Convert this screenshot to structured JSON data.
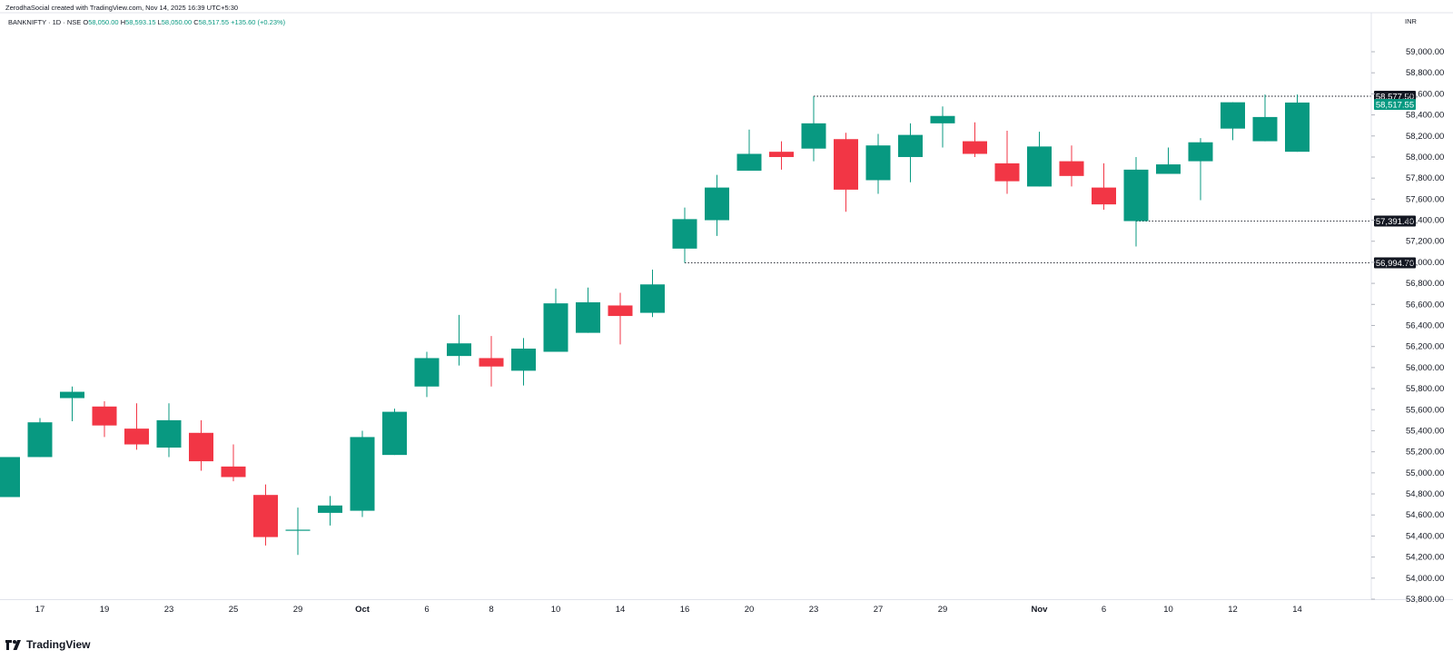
{
  "credit": "ZerodhaSocial created with TradingView.com, Nov 14, 2025 16:39 UTC+5:30",
  "legend": {
    "symbol": "BANKNIFTY · 1D · NSE",
    "open_label": "O",
    "open": "58,050.00",
    "high_label": "H",
    "high": "58,593.15",
    "low_label": "L",
    "low": "58,050.00",
    "close_label": "C",
    "close": "58,517.55",
    "change": "+135.60 (+0.23%)"
  },
  "currency": "INR",
  "brand": {
    "name": "TradingView",
    "icon": "tradingview-logo-icon"
  },
  "colors": {
    "up": "#089981",
    "down": "#f23645",
    "grid": "#f0f3fa",
    "text": "#131722",
    "last_price": "#089981"
  },
  "chart_data": {
    "type": "candlestick",
    "symbol": "BANKNIFTY",
    "interval": "1D",
    "exchange": "NSE",
    "ylim": [
      53800,
      59000
    ],
    "y_ticks": [
      53800,
      54000,
      54200,
      54400,
      54600,
      54800,
      55000,
      55200,
      55400,
      55600,
      55800,
      56000,
      56200,
      56400,
      56600,
      56800,
      57000,
      57200,
      57400,
      57600,
      57800,
      58000,
      58200,
      58400,
      58600,
      58800,
      59000
    ],
    "y_tick_labels": [
      "53,800.00",
      "54,000.00",
      "54,200.00",
      "54,400.00",
      "54,600.00",
      "54,800.00",
      "55,000.00",
      "55,200.00",
      "55,400.00",
      "55,600.00",
      "55,800.00",
      "56,000.00",
      "56,200.00",
      "56,400.00",
      "56,600.00",
      "56,800.00",
      "57,000.00",
      "57,200.00",
      "57,400.00",
      "57,600.00",
      "57,800.00",
      "58,000.00",
      "58,200.00",
      "58,400.00",
      "58,600.00",
      "58,800.00",
      "59,000.00"
    ],
    "x_tick_labels": [
      {
        "label": "17",
        "bar": 1
      },
      {
        "label": "19",
        "bar": 3
      },
      {
        "label": "23",
        "bar": 5
      },
      {
        "label": "25",
        "bar": 7
      },
      {
        "label": "29",
        "bar": 9
      },
      {
        "label": "Oct",
        "bar": 11,
        "bold": true
      },
      {
        "label": "6",
        "bar": 13
      },
      {
        "label": "8",
        "bar": 15
      },
      {
        "label": "10",
        "bar": 17
      },
      {
        "label": "14",
        "bar": 19
      },
      {
        "label": "16",
        "bar": 21
      },
      {
        "label": "20",
        "bar": 23
      },
      {
        "label": "23",
        "bar": 25
      },
      {
        "label": "27",
        "bar": 27
      },
      {
        "label": "29",
        "bar": 29
      },
      {
        "label": "Nov",
        "bar": 32,
        "bold": true
      },
      {
        "label": "6",
        "bar": 34
      },
      {
        "label": "10",
        "bar": 36
      },
      {
        "label": "12",
        "bar": 38
      },
      {
        "label": "14",
        "bar": 40
      }
    ],
    "candles": [
      {
        "o": 54770,
        "h": 55150,
        "l": 54770,
        "c": 55150
      },
      {
        "o": 55150,
        "h": 55520,
        "l": 55150,
        "c": 55480
      },
      {
        "o": 55710,
        "h": 55820,
        "l": 55490,
        "c": 55770
      },
      {
        "o": 55630,
        "h": 55680,
        "l": 55340,
        "c": 55450
      },
      {
        "o": 55420,
        "h": 55660,
        "l": 55220,
        "c": 55270
      },
      {
        "o": 55240,
        "h": 55660,
        "l": 55150,
        "c": 55500
      },
      {
        "o": 55380,
        "h": 55500,
        "l": 55020,
        "c": 55110
      },
      {
        "o": 55060,
        "h": 55270,
        "l": 54920,
        "c": 54960
      },
      {
        "o": 54790,
        "h": 54890,
        "l": 54310,
        "c": 54390
      },
      {
        "o": 54460,
        "h": 54670,
        "l": 54220,
        "c": 54460
      },
      {
        "o": 54620,
        "h": 54780,
        "l": 54500,
        "c": 54690
      },
      {
        "o": 54640,
        "h": 55400,
        "l": 54580,
        "c": 55340
      },
      {
        "o": 55170,
        "h": 55610,
        "l": 55170,
        "c": 55580
      },
      {
        "o": 55820,
        "h": 56150,
        "l": 55720,
        "c": 56090
      },
      {
        "o": 56110,
        "h": 56500,
        "l": 56020,
        "c": 56230
      },
      {
        "o": 56090,
        "h": 56300,
        "l": 55820,
        "c": 56010
      },
      {
        "o": 55970,
        "h": 56280,
        "l": 55830,
        "c": 56180
      },
      {
        "o": 56150,
        "h": 56750,
        "l": 56150,
        "c": 56610
      },
      {
        "o": 56330,
        "h": 56760,
        "l": 56330,
        "c": 56620
      },
      {
        "o": 56590,
        "h": 56710,
        "l": 56220,
        "c": 56490
      },
      {
        "o": 56520,
        "h": 56930,
        "l": 56480,
        "c": 56790
      },
      {
        "o": 57130,
        "h": 57520,
        "l": 56994.7,
        "c": 57410
      },
      {
        "o": 57400,
        "h": 57830,
        "l": 57250,
        "c": 57710
      },
      {
        "o": 57870,
        "h": 58260,
        "l": 57870,
        "c": 58030
      },
      {
        "o": 58050,
        "h": 58150,
        "l": 57880,
        "c": 58000
      },
      {
        "o": 58080,
        "h": 58577.5,
        "l": 57960,
        "c": 58320
      },
      {
        "o": 58170,
        "h": 58230,
        "l": 57480,
        "c": 57690
      },
      {
        "o": 57780,
        "h": 58220,
        "l": 57650,
        "c": 58110
      },
      {
        "o": 58000,
        "h": 58320,
        "l": 57760,
        "c": 58210
      },
      {
        "o": 58320,
        "h": 58480,
        "l": 58090,
        "c": 58390
      },
      {
        "o": 58150,
        "h": 58330,
        "l": 58000,
        "c": 58030
      },
      {
        "o": 57940,
        "h": 58250,
        "l": 57650,
        "c": 57770
      },
      {
        "o": 57720,
        "h": 58240,
        "l": 57720,
        "c": 58100
      },
      {
        "o": 57960,
        "h": 58110,
        "l": 57720,
        "c": 57820
      },
      {
        "o": 57710,
        "h": 57940,
        "l": 57500,
        "c": 57550
      },
      {
        "o": 57391.4,
        "h": 58000,
        "l": 57150,
        "c": 57880
      },
      {
        "o": 57840,
        "h": 58090,
        "l": 57840,
        "c": 57930
      },
      {
        "o": 57960,
        "h": 58180,
        "l": 57590,
        "c": 58140
      },
      {
        "o": 58270,
        "h": 58520,
        "l": 58160,
        "c": 58520
      },
      {
        "o": 58150,
        "h": 58593.15,
        "l": 58150,
        "c": 58380
      },
      {
        "o": 58050,
        "h": 58593.15,
        "l": 58050,
        "c": 58517.55
      }
    ],
    "price_lines": [
      {
        "value": 58577.5,
        "label": "58,577.50",
        "from_bar": 25,
        "style": "dotted",
        "label_bg": "#131722"
      },
      {
        "value": 57391.4,
        "label": "57,391.40",
        "from_bar": 35,
        "style": "dotted",
        "label_bg": "#131722"
      },
      {
        "value": 56994.7,
        "label": "56,994.70",
        "from_bar": 21,
        "style": "dotted",
        "label_bg": "#131722"
      }
    ],
    "last_price": {
      "value": 58517.55,
      "label": "58,517.55"
    }
  }
}
